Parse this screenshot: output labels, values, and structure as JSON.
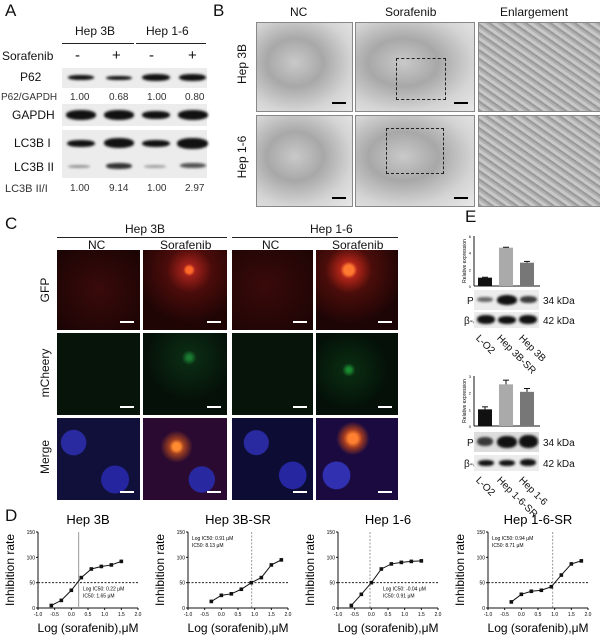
{
  "panels": {
    "a": "A",
    "b": "B",
    "c": "C",
    "d": "D",
    "e": "E"
  },
  "panel_a": {
    "groups": [
      "Hep 3B",
      "Hep 1-6"
    ],
    "treatment_label": "Sorafenib",
    "treatments": [
      "-",
      "+",
      "-",
      "+"
    ],
    "rows": {
      "p62": "P62",
      "p62_ratio_label": "P62/GAPDH",
      "gapdh": "GAPDH",
      "lc3b1": "LC3B I",
      "lc3b2": "LC3B II",
      "lc3b_ratio_label": "LC3B II/I"
    },
    "p62_ratio": [
      "1.00",
      "0.68",
      "1.00",
      "0.80"
    ],
    "lc3b_ratio": [
      "1.00",
      "9.14",
      "1.00",
      "2.97"
    ]
  },
  "panel_b": {
    "columns": [
      "NC",
      "Sorafenib",
      "Enlargement"
    ],
    "rows": [
      "Hep 3B",
      "Hep 1-6"
    ]
  },
  "panel_c": {
    "groups": [
      "Hep 3B",
      "Hep 1-6"
    ],
    "columns": [
      "NC",
      "Sorafenib",
      "NC",
      "Sorafenib"
    ],
    "rows": [
      "GFP",
      "mCheery",
      "Merge"
    ]
  },
  "panel_e": {
    "upper": {
      "ylabel": "Relative expression",
      "yticks": [
        "0",
        "2",
        "4",
        "6"
      ],
      "protein": "PPT 1",
      "protein_kda": "34 kDa",
      "control": "β-actin",
      "control_kda": "42 kDa",
      "lanes": [
        "L-O2",
        "Hep 3B-SR",
        "Hep 3B"
      ]
    },
    "lower": {
      "ylabel": "Relative expression",
      "yticks": [
        "0",
        "1",
        "2",
        "3"
      ],
      "protein": "PPT 1",
      "protein_kda": "34 kDa",
      "control": "β-actin",
      "control_kda": "42 kDa",
      "lanes": [
        "L-O2",
        "Hep 1-6-SR",
        "Hep 1-6"
      ]
    }
  },
  "chart_data": [
    {
      "type": "bar",
      "title": "",
      "categories": [
        "L-O2",
        "Hep 3B-SR",
        "Hep 3B"
      ],
      "values": [
        1.0,
        4.6,
        2.8
      ],
      "errors": [
        0.05,
        0.05,
        0.15
      ],
      "ylabel": "Relative expression",
      "ylim": [
        0,
        6
      ],
      "colors": [
        "#111111",
        "#aaaaaa",
        "#777777"
      ]
    },
    {
      "type": "bar",
      "title": "",
      "categories": [
        "L-O2",
        "Hep 1-6-SR",
        "Hep 1-6"
      ],
      "values": [
        1.0,
        2.5,
        2.05
      ],
      "errors": [
        0.15,
        0.25,
        0.2
      ],
      "ylabel": "Relative expression",
      "ylim": [
        0,
        3
      ],
      "colors": [
        "#111111",
        "#aaaaaa",
        "#777777"
      ]
    },
    {
      "type": "scatter",
      "title": "Hep 3B",
      "xlabel": "Log (sorafenib),μM",
      "ylabel": "Inhibition rate",
      "xlim": [
        -1,
        2
      ],
      "ylim": [
        0,
        150
      ],
      "xticks": [
        "-1.0",
        "-0.5",
        "0.0",
        "0.5",
        "1.0",
        "1.5",
        "2.0"
      ],
      "yticks": [
        "0",
        "50",
        "100",
        "150"
      ],
      "x": [
        -0.6,
        -0.3,
        0,
        0.3,
        0.6,
        0.9,
        1.2,
        1.5
      ],
      "y": [
        5,
        15,
        35,
        60,
        77,
        82,
        85,
        92
      ],
      "log_ic50": 0.22,
      "annotation": [
        "Log IC50: 0.22 μM",
        "IC50: 1.65 μM"
      ],
      "annotation_pos": "bottom-right"
    },
    {
      "type": "scatter",
      "title": "Hep 3B-SR",
      "xlabel": "Log (sorafenib),μM",
      "ylabel": "Inhibition rate",
      "xlim": [
        -1,
        2
      ],
      "ylim": [
        0,
        150
      ],
      "xticks": [
        "-1.0",
        "-0.5",
        "0.0",
        "0.5",
        "1.0",
        "1.5",
        "2.0"
      ],
      "yticks": [
        "0",
        "50",
        "100",
        "150"
      ],
      "x": [
        -0.3,
        0,
        0.3,
        0.6,
        0.9,
        1.2,
        1.5,
        1.8
      ],
      "y": [
        13,
        25,
        28,
        37,
        50,
        60,
        85,
        95
      ],
      "log_ic50": 0.91,
      "annotation": [
        "Log IC50: 0.91 μM",
        "IC50: 8.13 μM"
      ],
      "annotation_pos": "top-left"
    },
    {
      "type": "scatter",
      "title": "Hep 1-6",
      "xlabel": "Log (sorafenib),μM",
      "ylabel": "Inhibition rate",
      "xlim": [
        -1,
        2
      ],
      "ylim": [
        0,
        150
      ],
      "xticks": [
        "-1.0",
        "-0.5",
        "0.0",
        "0.5",
        "1.0",
        "1.5",
        "2.0"
      ],
      "yticks": [
        "0",
        "50",
        "100",
        "150"
      ],
      "x": [
        -0.6,
        -0.3,
        0,
        0.3,
        0.6,
        0.9,
        1.2,
        1.5
      ],
      "y": [
        5,
        27,
        50,
        77,
        87,
        90,
        92,
        93
      ],
      "log_ic50": -0.04,
      "annotation": [
        "Log IC50: -0.04 μM",
        "IC50: 0.91 μM"
      ],
      "annotation_pos": "bottom-right"
    },
    {
      "type": "scatter",
      "title": "Hep 1-6-SR",
      "xlabel": "Log (sorafenib),μM",
      "ylabel": "Inhibition rate",
      "xlim": [
        -1,
        2
      ],
      "ylim": [
        0,
        150
      ],
      "xticks": [
        "-1.0",
        "-0.5",
        "0.0",
        "0.5",
        "1.0",
        "1.5",
        "2.0"
      ],
      "yticks": [
        "0",
        "50",
        "100",
        "150"
      ],
      "x": [
        -0.3,
        0,
        0.3,
        0.6,
        0.9,
        1.2,
        1.5,
        1.8
      ],
      "y": [
        12,
        27,
        33,
        35,
        42,
        65,
        87,
        93
      ],
      "log_ic50": 0.94,
      "annotation": [
        "Log IC50: 0.94 μM",
        "IC50: 8.71 μM"
      ],
      "annotation_pos": "top-left"
    }
  ]
}
